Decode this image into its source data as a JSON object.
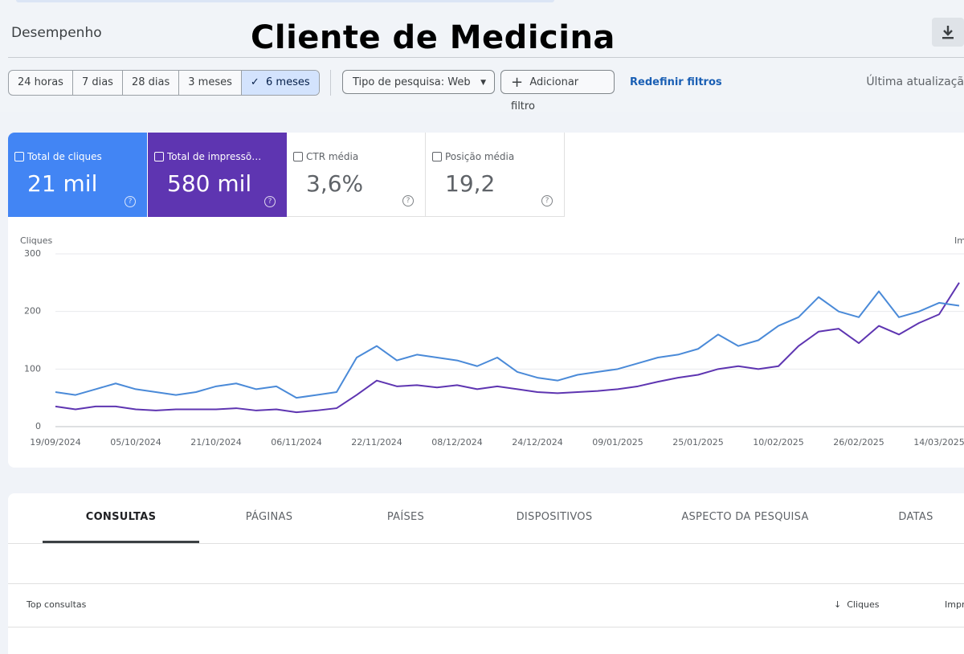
{
  "header": {
    "section": "Desempenho",
    "title": "Cliente de Medicina"
  },
  "filters": {
    "date_ranges": [
      "24 horas",
      "7 dias",
      "28 dias",
      "3 meses",
      "6 meses"
    ],
    "search_type": "Tipo de pesquisa: Web",
    "add_filter": "Adicionar filtro",
    "reset": "Redefinir filtros",
    "last_update": "Última atualizaçã"
  },
  "metrics": [
    {
      "label": "Total de cliques",
      "value": "21 mil"
    },
    {
      "label": "Total de impressõ…",
      "value": "580 mil"
    },
    {
      "label": "CTR média",
      "value": "3,6%"
    },
    {
      "label": "Posição média",
      "value": "19,2"
    }
  ],
  "chart_data": {
    "type": "line",
    "ylabel": "Cliques",
    "y2label": "Im",
    "x": [
      "19/09/2024",
      "23/09/2024",
      "27/09/2024",
      "01/10/2024",
      "05/10/2024",
      "09/10/2024",
      "13/10/2024",
      "17/10/2024",
      "21/10/2024",
      "25/10/2024",
      "29/10/2024",
      "02/11/2024",
      "06/11/2024",
      "10/11/2024",
      "14/11/2024",
      "18/11/2024",
      "22/11/2024",
      "26/11/2024",
      "30/11/2024",
      "04/12/2024",
      "08/12/2024",
      "12/12/2024",
      "16/12/2024",
      "20/12/2024",
      "24/12/2024",
      "28/12/2024",
      "01/01/2025",
      "05/01/2025",
      "09/01/2025",
      "13/01/2025",
      "17/01/2025",
      "21/01/2025",
      "25/01/2025",
      "29/01/2025",
      "02/02/2025",
      "06/02/2025",
      "10/02/2025",
      "14/02/2025",
      "18/02/2025",
      "22/02/2025",
      "26/02/2025",
      "02/03/2025",
      "06/03/2025",
      "10/03/2025",
      "14/03/2025",
      "18/03/2025"
    ],
    "series": [
      {
        "name": "Cliques",
        "color": "#4a8ad8",
        "values": [
          60,
          55,
          65,
          75,
          65,
          60,
          55,
          60,
          70,
          75,
          65,
          70,
          50,
          55,
          60,
          120,
          140,
          115,
          125,
          120,
          115,
          105,
          120,
          95,
          85,
          80,
          90,
          95,
          100,
          110,
          120,
          125,
          135,
          160,
          140,
          150,
          175,
          190,
          225,
          200,
          190,
          235,
          190,
          200,
          215,
          210
        ]
      },
      {
        "name": "Impressões",
        "color": "#5e35b1",
        "values": [
          35,
          30,
          35,
          35,
          30,
          28,
          30,
          30,
          30,
          32,
          28,
          30,
          25,
          28,
          32,
          55,
          80,
          70,
          72,
          68,
          72,
          65,
          70,
          65,
          60,
          58,
          60,
          62,
          65,
          70,
          78,
          85,
          90,
          100,
          105,
          100,
          105,
          140,
          165,
          170,
          145,
          175,
          160,
          180,
          195,
          250
        ]
      }
    ],
    "ylim": [
      0,
      300
    ],
    "yticks": [
      0,
      100,
      200,
      300
    ],
    "xticks": [
      "19/09/2024",
      "05/10/2024",
      "21/10/2024",
      "06/11/2024",
      "22/11/2024",
      "08/12/2024",
      "24/12/2024",
      "09/01/2025",
      "25/01/2025",
      "10/02/2025",
      "26/02/2025",
      "14/03/2025"
    ],
    "grid": true
  },
  "tabs": [
    "CONSULTAS",
    "PÁGINAS",
    "PAÍSES",
    "DISPOSITIVOS",
    "ASPECTO DA PESQUISA",
    "DATAS"
  ],
  "table": {
    "columns": [
      "Top consultas",
      "Cliques",
      "Impr"
    ]
  }
}
